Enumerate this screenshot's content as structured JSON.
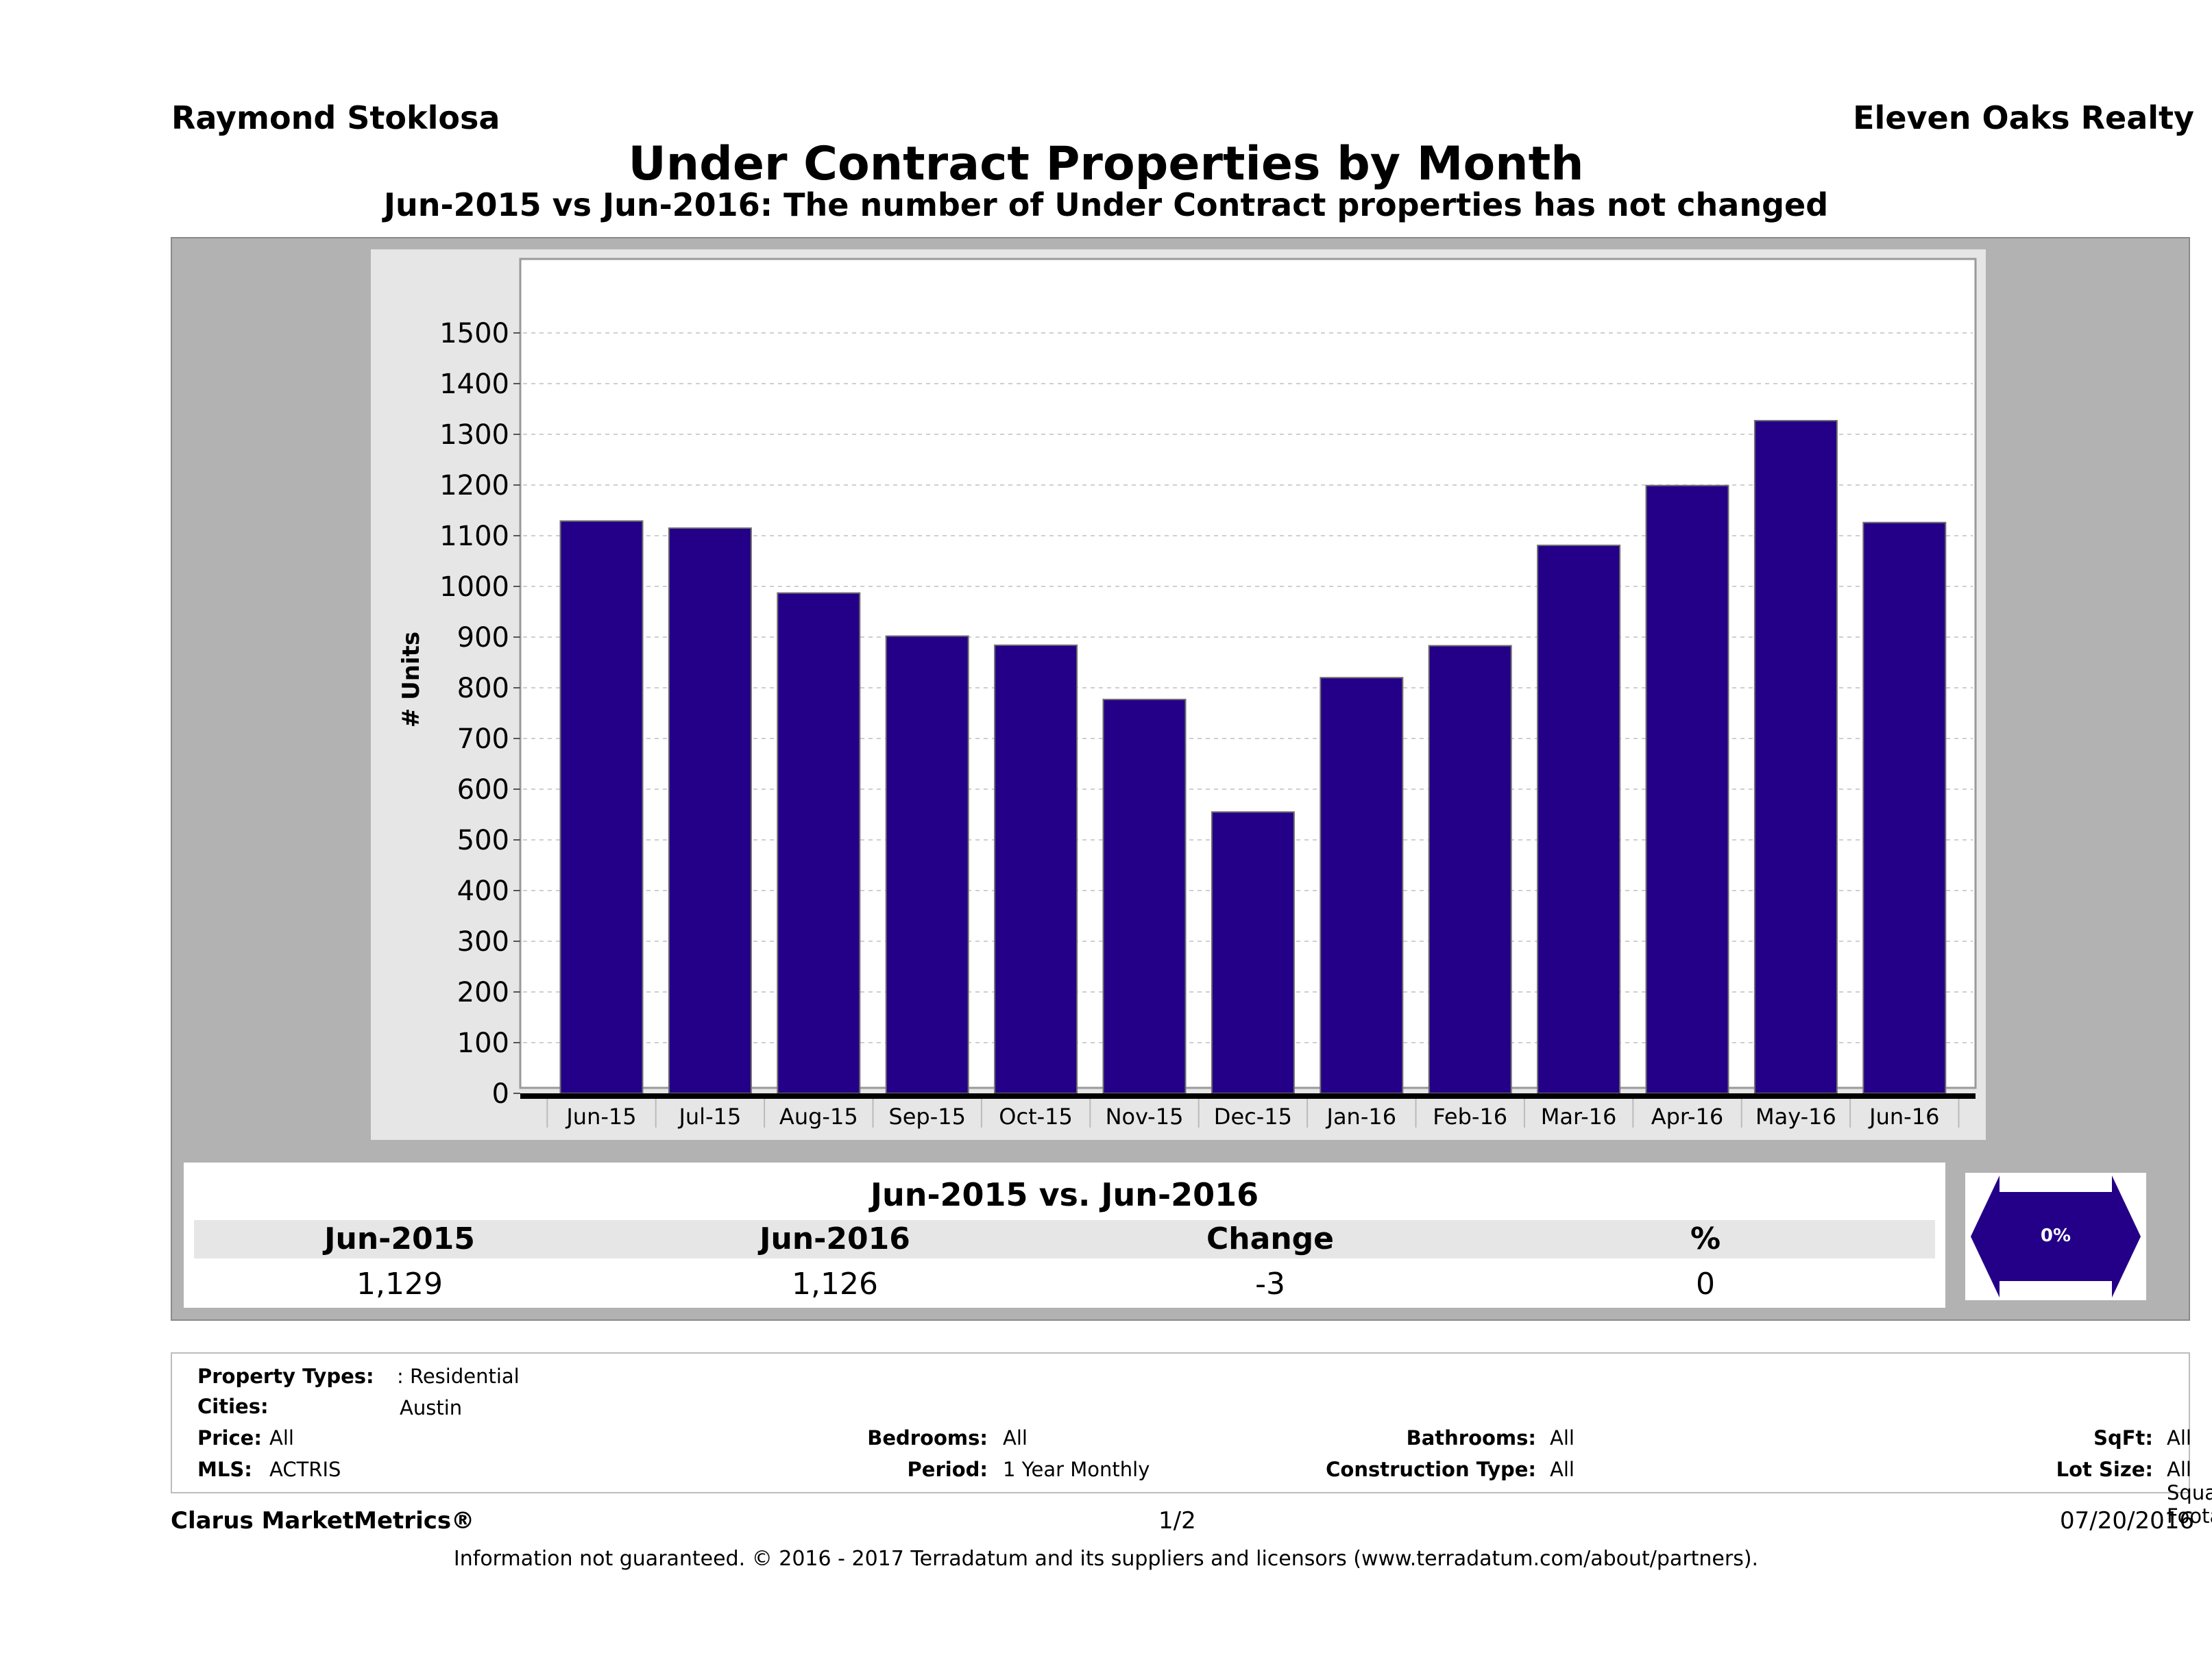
{
  "header": {
    "agent": "Raymond Stoklosa",
    "brokerage": "Eleven Oaks Realty",
    "title": "Under Contract Properties by Month",
    "subtitle": "Jun-2015 vs Jun-2016: The number of Under Contract   properties has not changed"
  },
  "chart_data": {
    "type": "bar",
    "categories": [
      "Jun-15",
      "Jul-15",
      "Aug-15",
      "Sep-15",
      "Oct-15",
      "Nov-15",
      "Dec-15",
      "Jan-16",
      "Feb-16",
      "Mar-16",
      "Apr-16",
      "May-16",
      "Jun-16"
    ],
    "values": [
      1129,
      1115,
      987,
      902,
      884,
      777,
      555,
      820,
      883,
      1081,
      1199,
      1327,
      1126
    ],
    "ylabel": "# Units",
    "ylim": [
      0,
      1550
    ],
    "yticks": [
      0,
      100,
      200,
      300,
      400,
      500,
      600,
      700,
      800,
      900,
      1000,
      1100,
      1200,
      1300,
      1400,
      1500
    ],
    "grid": true,
    "bar_color": "#230087"
  },
  "comparison": {
    "title": "Jun-2015 vs. Jun-2016",
    "headers": [
      "Jun-2015",
      "Jun-2016",
      "Change",
      "%"
    ],
    "values": [
      "1,129",
      "1,126",
      "-3",
      "0"
    ],
    "badge": "0%",
    "badge_color": "#230087"
  },
  "filters": {
    "property_types_label": "Property Types:",
    "property_types_value": ": Residential",
    "cities_label": "Cities:",
    "cities_value": "Austin",
    "price_label": "Price:",
    "price_value": "All",
    "mls_label": "MLS:",
    "mls_value": "ACTRIS",
    "bedrooms_label": "Bedrooms:",
    "bedrooms_value": "All",
    "period_label": "Period:",
    "period_value": "1 Year Monthly",
    "bathrooms_label": "Bathrooms:",
    "bathrooms_value": "All",
    "construction_label": "Construction Type:",
    "construction_value": "All",
    "sqft_label": "SqFt:",
    "sqft_value": "All",
    "lot_label": "Lot Size:",
    "lot_value": "All Square Footage"
  },
  "footer": {
    "brand": "Clarus MarketMetrics®",
    "page": "1/2",
    "date": "07/20/2016",
    "disclaimer": "Information not guaranteed. © 2016 - 2017 Terradatum and its suppliers and licensors (www.terradatum.com/about/partners)."
  }
}
